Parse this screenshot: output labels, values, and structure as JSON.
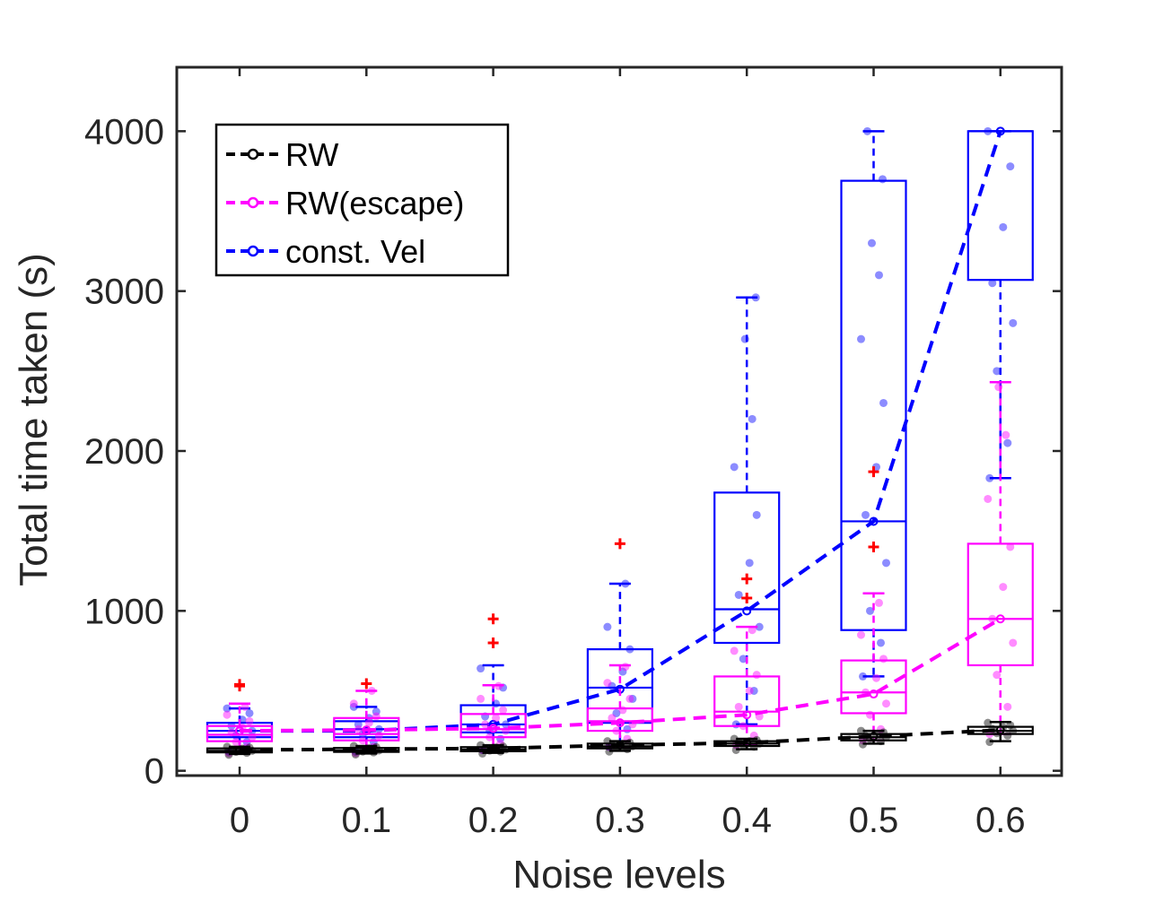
{
  "chart_data": {
    "type": "box",
    "xlabel": "Noise levels",
    "ylabel": "Total time taken (s)",
    "categories": [
      "0",
      "0.1",
      "0.2",
      "0.3",
      "0.4",
      "0.5",
      "0.6"
    ],
    "ylim": [
      -30,
      4400
    ],
    "yticks": [
      0,
      1000,
      2000,
      3000,
      4000
    ],
    "yticklabels": [
      "0",
      "1000",
      "2000",
      "3000",
      "4000"
    ],
    "legend_position": "top-left",
    "series": [
      {
        "name": "RW",
        "color": "#000000",
        "mean_line": [
          130,
          135,
          140,
          160,
          175,
          215,
          255
        ],
        "boxes": [
          {
            "q1": 115,
            "median": 125,
            "q3": 140,
            "wlo": 105,
            "whi": 150,
            "outliers": []
          },
          {
            "q1": 118,
            "median": 128,
            "q3": 143,
            "wlo": 108,
            "whi": 155,
            "outliers": []
          },
          {
            "q1": 122,
            "median": 133,
            "q3": 148,
            "wlo": 112,
            "whi": 160,
            "outliers": []
          },
          {
            "q1": 140,
            "median": 153,
            "q3": 170,
            "wlo": 125,
            "whi": 185,
            "outliers": []
          },
          {
            "q1": 155,
            "median": 170,
            "q3": 185,
            "wlo": 135,
            "whi": 200,
            "outliers": []
          },
          {
            "q1": 190,
            "median": 210,
            "q3": 230,
            "wlo": 170,
            "whi": 250,
            "outliers": []
          },
          {
            "q1": 230,
            "median": 250,
            "q3": 275,
            "wlo": 185,
            "whi": 305,
            "outliers": []
          }
        ],
        "points": [
          [
            100,
            112,
            118,
            125,
            130,
            138,
            145,
            150
          ],
          [
            102,
            115,
            120,
            127,
            132,
            140,
            148,
            155
          ],
          [
            108,
            120,
            126,
            133,
            138,
            146,
            152,
            160
          ],
          [
            120,
            135,
            145,
            153,
            160,
            168,
            176,
            185
          ],
          [
            130,
            150,
            160,
            170,
            178,
            185,
            192,
            200
          ],
          [
            165,
            185,
            200,
            210,
            218,
            228,
            240,
            250
          ],
          [
            180,
            220,
            235,
            250,
            262,
            272,
            285,
            300
          ]
        ]
      },
      {
        "name": "RW(escape)",
        "color": "#ff00ff",
        "mean_line": [
          250,
          255,
          265,
          300,
          350,
          480,
          950
        ],
        "boxes": [
          {
            "q1": 185,
            "median": 225,
            "q3": 280,
            "wlo": 110,
            "whi": 420,
            "outliers": [
              530,
              540
            ]
          },
          {
            "q1": 190,
            "median": 230,
            "q3": 330,
            "wlo": 110,
            "whi": 500,
            "outliers": [
              545
            ]
          },
          {
            "q1": 210,
            "median": 260,
            "q3": 355,
            "wlo": 130,
            "whi": 535,
            "outliers": [
              800,
              950
            ]
          },
          {
            "q1": 250,
            "median": 310,
            "q3": 390,
            "wlo": 150,
            "whi": 660,
            "outliers": [
              1420
            ]
          },
          {
            "q1": 280,
            "median": 370,
            "q3": 590,
            "wlo": 160,
            "whi": 900,
            "outliers": [
              1080,
              1200
            ]
          },
          {
            "q1": 360,
            "median": 490,
            "q3": 690,
            "wlo": 190,
            "whi": 1110,
            "outliers": [
              1400,
              1870
            ]
          },
          {
            "q1": 660,
            "median": 950,
            "q3": 1420,
            "wlo": 230,
            "whi": 2430,
            "outliers": []
          }
        ],
        "points": [
          [
            110,
            150,
            180,
            210,
            240,
            270,
            310,
            350,
            400
          ],
          [
            110,
            150,
            190,
            220,
            260,
            300,
            340,
            420,
            500
          ],
          [
            130,
            170,
            210,
            250,
            290,
            330,
            380,
            450,
            530
          ],
          [
            150,
            200,
            250,
            290,
            330,
            380,
            450,
            550,
            650
          ],
          [
            160,
            220,
            280,
            340,
            400,
            500,
            600,
            750,
            880
          ],
          [
            190,
            260,
            350,
            420,
            490,
            580,
            700,
            850,
            1050
          ],
          [
            230,
            400,
            600,
            800,
            950,
            1150,
            1400,
            1700,
            2100,
            2400
          ]
        ]
      },
      {
        "name": "const. Vel",
        "color": "#0000ff",
        "mean_line": [
          250,
          250,
          290,
          510,
          1000,
          1560,
          4000
        ],
        "boxes": [
          {
            "q1": 210,
            "median": 250,
            "q3": 300,
            "wlo": 120,
            "whi": 390,
            "outliers": []
          },
          {
            "q1": 210,
            "median": 260,
            "q3": 310,
            "wlo": 120,
            "whi": 400,
            "outliers": []
          },
          {
            "q1": 240,
            "median": 290,
            "q3": 410,
            "wlo": 130,
            "whi": 660,
            "outliers": []
          },
          {
            "q1": 300,
            "median": 520,
            "q3": 760,
            "wlo": 150,
            "whi": 1170,
            "outliers": []
          },
          {
            "q1": 800,
            "median": 1010,
            "q3": 1740,
            "wlo": 290,
            "whi": 2960,
            "outliers": []
          },
          {
            "q1": 880,
            "median": 1560,
            "q3": 3690,
            "wlo": 590,
            "whi": 4000,
            "outliers": []
          },
          {
            "q1": 3070,
            "median": 4000,
            "q3": 4000,
            "wlo": 1830,
            "whi": 4000,
            "outliers": []
          }
        ],
        "points": [
          [
            120,
            180,
            220,
            250,
            280,
            320,
            360,
            390
          ],
          [
            120,
            180,
            230,
            260,
            290,
            330,
            370,
            400
          ],
          [
            130,
            200,
            250,
            290,
            340,
            420,
            520,
            640
          ],
          [
            150,
            260,
            360,
            450,
            530,
            620,
            760,
            900,
            1170
          ],
          [
            290,
            500,
            700,
            900,
            1100,
            1300,
            1600,
            1900,
            2200,
            2700,
            2960
          ],
          [
            590,
            800,
            1000,
            1300,
            1600,
            1900,
            2300,
            2700,
            3100,
            3300,
            3700,
            4000
          ],
          [
            1830,
            2050,
            2500,
            2800,
            3050,
            3400,
            3780,
            4000
          ]
        ]
      }
    ]
  }
}
